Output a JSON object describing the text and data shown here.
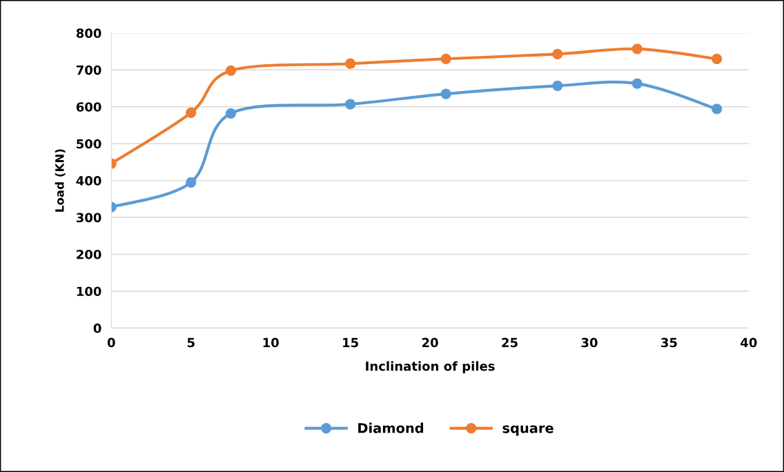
{
  "chart_data": {
    "type": "line",
    "xlabel": "Inclination of piles",
    "ylabel": "Load (KN)",
    "x": [
      0,
      5,
      7.5,
      15,
      21,
      28,
      33,
      38
    ],
    "series": [
      {
        "name": "Diamond",
        "color": "#5b9bd5",
        "values": [
          328,
          395,
          582,
          607,
          635,
          657,
          663,
          594
        ]
      },
      {
        "name": "square",
        "color": "#ed7d31",
        "values": [
          446,
          584,
          698,
          717,
          730,
          743,
          757,
          730
        ]
      }
    ],
    "xlim": [
      0,
      40
    ],
    "xticks": [
      0,
      5,
      10,
      15,
      20,
      25,
      30,
      35,
      40
    ],
    "ylim": [
      0,
      800
    ],
    "yticks": [
      0,
      100,
      200,
      300,
      400,
      500,
      600,
      700,
      800
    ],
    "grid": "y",
    "legend": "bottom",
    "marker": "circle",
    "line_style": "solid"
  }
}
